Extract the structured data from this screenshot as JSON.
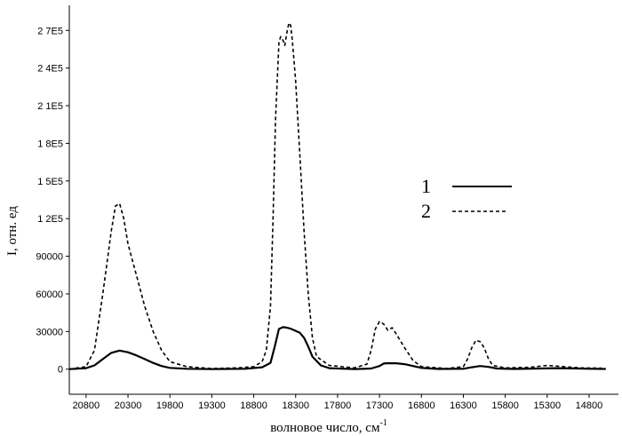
{
  "chart_data": {
    "type": "line",
    "xlabel": "волновое число, см",
    "xlabel_sup": "-1",
    "ylabel": "I, отн. ед",
    "xlim": [
      21000,
      14450
    ],
    "x_reversed": true,
    "ylim": [
      -20000,
      290000
    ],
    "x_ticks": [
      20800,
      20300,
      19800,
      19300,
      18800,
      18300,
      17800,
      17300,
      16800,
      16300,
      15800,
      15300,
      14800
    ],
    "y_ticks": [
      0,
      30000,
      60000,
      90000,
      120000,
      150000,
      180000,
      210000,
      240000,
      270000
    ],
    "y_tick_labels": [
      "0",
      "30000",
      "60000",
      "90000",
      "1 2E5",
      "1 5E5",
      "1 8E5",
      "2 1E5",
      "2 4E5",
      "2 7E5"
    ],
    "grid": false,
    "legend_position": "right-middle",
    "series": [
      {
        "name": "1",
        "style": "solid",
        "color": "#000000",
        "points": [
          [
            21000,
            0
          ],
          [
            20800,
            800
          ],
          [
            20700,
            3000
          ],
          [
            20600,
            8000
          ],
          [
            20500,
            13000
          ],
          [
            20400,
            14800
          ],
          [
            20300,
            13500
          ],
          [
            20200,
            11000
          ],
          [
            20100,
            8000
          ],
          [
            20000,
            5000
          ],
          [
            19900,
            2500
          ],
          [
            19800,
            1000
          ],
          [
            19600,
            300
          ],
          [
            19300,
            0
          ],
          [
            18900,
            300
          ],
          [
            18700,
            1500
          ],
          [
            18600,
            5000
          ],
          [
            18550,
            18000
          ],
          [
            18500,
            32000
          ],
          [
            18450,
            33500
          ],
          [
            18400,
            33000
          ],
          [
            18350,
            32000
          ],
          [
            18300,
            30500
          ],
          [
            18250,
            29000
          ],
          [
            18200,
            25000
          ],
          [
            18150,
            18000
          ],
          [
            18100,
            10000
          ],
          [
            18000,
            3000
          ],
          [
            17900,
            800
          ],
          [
            17600,
            0
          ],
          [
            17400,
            500
          ],
          [
            17300,
            2500
          ],
          [
            17250,
            4500
          ],
          [
            17200,
            4800
          ],
          [
            17100,
            4700
          ],
          [
            17000,
            4000
          ],
          [
            16900,
            2500
          ],
          [
            16800,
            1000
          ],
          [
            16600,
            200
          ],
          [
            16300,
            300
          ],
          [
            16200,
            1500
          ],
          [
            16100,
            2500
          ],
          [
            16000,
            1800
          ],
          [
            15900,
            500
          ],
          [
            15700,
            200
          ],
          [
            15400,
            500
          ],
          [
            15200,
            800
          ],
          [
            15000,
            600
          ],
          [
            14800,
            300
          ],
          [
            14600,
            200
          ]
        ]
      },
      {
        "name": "2",
        "style": "dashed",
        "color": "#000000",
        "points": [
          [
            21000,
            0
          ],
          [
            20800,
            2000
          ],
          [
            20700,
            15000
          ],
          [
            20600,
            60000
          ],
          [
            20500,
            110000
          ],
          [
            20450,
            130000
          ],
          [
            20400,
            132000
          ],
          [
            20350,
            120000
          ],
          [
            20300,
            100000
          ],
          [
            20200,
            75000
          ],
          [
            20100,
            50000
          ],
          [
            20000,
            30000
          ],
          [
            19900,
            15000
          ],
          [
            19800,
            6000
          ],
          [
            19600,
            2000
          ],
          [
            19300,
            500
          ],
          [
            19000,
            1000
          ],
          [
            18800,
            2000
          ],
          [
            18700,
            6000
          ],
          [
            18650,
            15000
          ],
          [
            18600,
            50000
          ],
          [
            18570,
            120000
          ],
          [
            18540,
            200000
          ],
          [
            18500,
            260000
          ],
          [
            18480,
            265000
          ],
          [
            18450,
            262000
          ],
          [
            18430,
            258000
          ],
          [
            18400,
            270000
          ],
          [
            18380,
            276000
          ],
          [
            18360,
            274000
          ],
          [
            18340,
            262000
          ],
          [
            18300,
            230000
          ],
          [
            18250,
            170000
          ],
          [
            18200,
            110000
          ],
          [
            18150,
            60000
          ],
          [
            18100,
            25000
          ],
          [
            18050,
            10000
          ],
          [
            17900,
            3000
          ],
          [
            17600,
            1000
          ],
          [
            17450,
            4000
          ],
          [
            17400,
            15000
          ],
          [
            17350,
            32000
          ],
          [
            17300,
            38000
          ],
          [
            17250,
            36000
          ],
          [
            17200,
            31000
          ],
          [
            17150,
            33000
          ],
          [
            17100,
            28000
          ],
          [
            17000,
            17000
          ],
          [
            16900,
            7000
          ],
          [
            16800,
            2000
          ],
          [
            16500,
            500
          ],
          [
            16300,
            2000
          ],
          [
            16250,
            8000
          ],
          [
            16200,
            17000
          ],
          [
            16150,
            23000
          ],
          [
            16100,
            22000
          ],
          [
            16050,
            17000
          ],
          [
            16000,
            8000
          ],
          [
            15950,
            3000
          ],
          [
            15800,
            1000
          ],
          [
            15500,
            1500
          ],
          [
            15300,
            3000
          ],
          [
            15100,
            2000
          ],
          [
            14900,
            1000
          ],
          [
            14650,
            800
          ]
        ]
      }
    ]
  }
}
